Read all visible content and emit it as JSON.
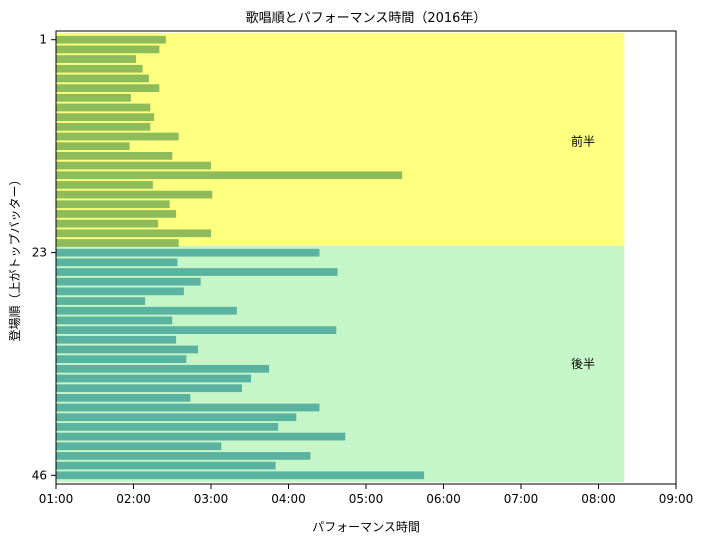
{
  "chart_data": {
    "type": "bar",
    "orientation": "horizontal",
    "title": "歌唱順とパフォーマンス時間（2016年）",
    "xlabel": "パフォーマンス時間",
    "ylabel": "登場順（上がトップバッター）",
    "xlim": [
      "01:00",
      "09:00"
    ],
    "x_ticks": [
      "01:00",
      "02:00",
      "03:00",
      "04:00",
      "05:00",
      "06:00",
      "07:00",
      "08:00",
      "09:00"
    ],
    "y_ticks": [
      "1",
      "23",
      "46"
    ],
    "grid": false,
    "regions": [
      {
        "label": "前半",
        "from": 1,
        "to": 22,
        "end_time": "08:20",
        "color": "#ffff80"
      },
      {
        "label": "後半",
        "from": 23,
        "to": 46,
        "end_time": "08:20",
        "color": "#c6f6c8"
      }
    ],
    "series": [
      {
        "color": "#8fbc5a",
        "order_start": 1,
        "values": [
          "02:25",
          "02:20",
          "02:02",
          "02:07",
          "02:12",
          "02:20",
          "01:58",
          "02:13",
          "02:16",
          "02:13",
          "02:35",
          "01:57",
          "02:30",
          "03:00",
          "05:28",
          "02:15",
          "03:01",
          "02:28",
          "02:33",
          "02:19",
          "03:00",
          "02:35"
        ]
      },
      {
        "color": "#5ab3a0",
        "order_start": 23,
        "values": [
          "04:24",
          "02:34",
          "04:38",
          "02:52",
          "02:39",
          "02:09",
          "03:20",
          "02:30",
          "04:37",
          "02:33",
          "02:50",
          "02:41",
          "03:45",
          "03:31",
          "03:24",
          "02:44",
          "04:24",
          "04:06",
          "03:52",
          "04:44",
          "03:08",
          "04:17",
          "03:50",
          "05:45"
        ]
      }
    ]
  }
}
